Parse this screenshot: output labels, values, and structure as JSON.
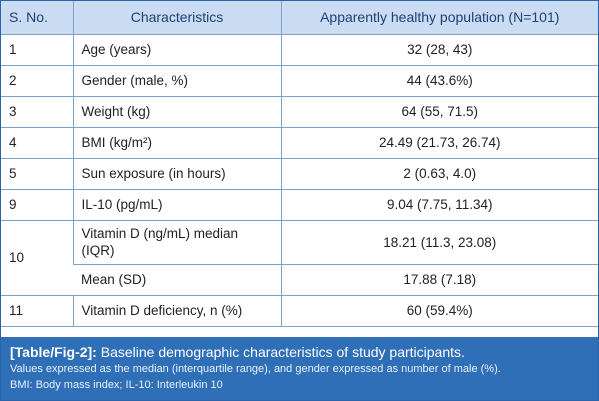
{
  "table": {
    "headers": [
      "S. No.",
      "Characteristics",
      "Apparently healthy population (N=101)"
    ],
    "rows": [
      {
        "sno": "1",
        "char": "Age (years)",
        "val": "32 (28, 43)"
      },
      {
        "sno": "2",
        "char": "Gender (male, %)",
        "val": "44 (43.6%)"
      },
      {
        "sno": "3",
        "char": "Weight (kg)",
        "val": "64 (55, 71.5)"
      },
      {
        "sno": "4",
        "char": "BMI (kg/m²)",
        "val": "24.49 (21.73, 26.74)"
      },
      {
        "sno": "5",
        "char": "Sun exposure (in hours)",
        "val": "2 (0.63, 4.0)"
      },
      {
        "sno": "9",
        "char": "IL-10 (pg/mL)",
        "val": "9.04 (7.75, 11.34)"
      },
      {
        "sno": "10",
        "char": "Vitamin D (ng/mL) median (IQR)",
        "val": "18.21 (11.3, 23.08)"
      },
      {
        "sno": "",
        "char": "Mean (SD)",
        "val": "17.88 (7.18)"
      },
      {
        "sno": "11",
        "char": "Vitamin D deficiency, n (%)",
        "val": "60 (59.4%)"
      }
    ]
  },
  "caption": {
    "label": "[Table/Fig-2]:",
    "title": " Baseline demographic characteristics of study participants.",
    "note1": "Values expressed as the median (interquartile range), and gender expressed as number of male (%).",
    "note2": "BMI: Body mass index; IL-10: Interleukin 10"
  }
}
